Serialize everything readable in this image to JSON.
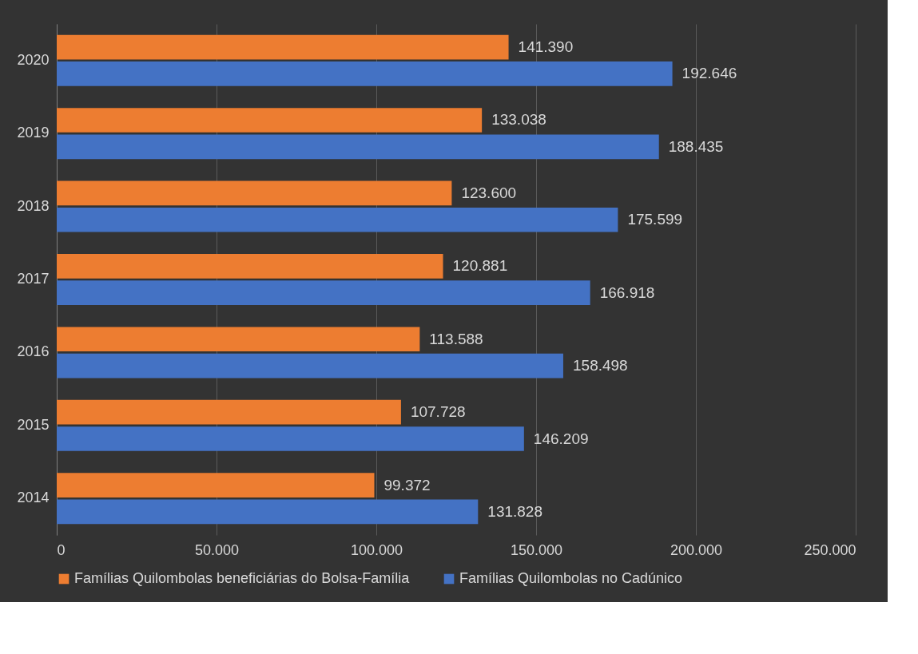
{
  "chart_data": {
    "type": "bar",
    "orientation": "horizontal",
    "categories": [
      "2020",
      "2019",
      "2018",
      "2017",
      "2016",
      "2015",
      "2014"
    ],
    "series": [
      {
        "name": "Famílias Quilombolas beneficiárias do Bolsa-Família",
        "color": "#ed7d31",
        "values": [
          141390,
          133038,
          123600,
          120881,
          113588,
          107728,
          99372
        ],
        "value_labels": [
          "141.390",
          "133.038",
          "123.600",
          "120.881",
          "113.588",
          "107.728",
          "99.372"
        ]
      },
      {
        "name": "Famílias Quilombolas no Cadúnico",
        "color": "#4472c4",
        "values": [
          192646,
          188435,
          175599,
          166918,
          158498,
          146209,
          131828
        ],
        "value_labels": [
          "192.646",
          "188.435",
          "175.599",
          "166.918",
          "158.498",
          "146.209",
          "131.828"
        ]
      }
    ],
    "xlim": [
      0,
      250000
    ],
    "xticks": [
      0,
      {
        "value": 50000,
        "label": "50.000"
      },
      {
        "value": 100000,
        "label": "100.000"
      },
      {
        "value": 150000,
        "label": "150.000"
      },
      {
        "value": 200000,
        "label": "200.000"
      },
      {
        "value": 250000,
        "label": "250.000"
      }
    ],
    "grid": "x",
    "legend": "bottom"
  }
}
